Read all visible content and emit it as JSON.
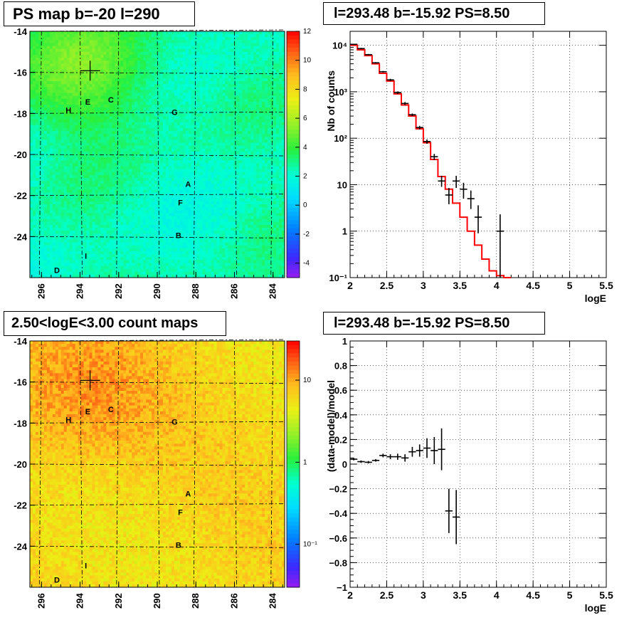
{
  "panels": {
    "map1_title": "PS map b=-20 l=290",
    "spec1_title": "l=293.48 b=-15.92 PS=8.50",
    "map2_title": "2.50<logE<3.00 count maps",
    "spec2_title": "l=293.48 b=-15.92 PS=8.50"
  },
  "chart_data": [
    {
      "type": "heatmap",
      "x_ticks": [
        "296",
        "294",
        "292",
        "290",
        "288",
        "286",
        "284"
      ],
      "x_tick_values": [
        296,
        294,
        292,
        290,
        288,
        286,
        284
      ],
      "y_ticks": [
        "-14",
        "-16",
        "-18",
        "-20",
        "-22",
        "-24"
      ],
      "y_tick_values": [
        -14,
        -16,
        -18,
        -20,
        -22,
        -24
      ],
      "xlim": [
        296.6,
        283.4
      ],
      "ylim": [
        -26.0,
        -14.0
      ],
      "z_ticks": [
        "12",
        "10",
        "8",
        "6",
        "4",
        "2",
        "0",
        "-2",
        "-4"
      ],
      "z_tick_values": [
        12,
        10,
        8,
        6,
        4,
        2,
        0,
        -2,
        -4
      ],
      "zlim": [
        -5,
        12
      ],
      "grid": true,
      "source_labels": [
        {
          "text": "E",
          "l": 293.6,
          "b": -17.4
        },
        {
          "text": "C",
          "l": 292.4,
          "b": -17.3
        },
        {
          "text": "H",
          "l": 294.6,
          "b": -17.8
        },
        {
          "text": "G",
          "l": 289.1,
          "b": -17.9
        },
        {
          "text": "A",
          "l": 288.4,
          "b": -21.4
        },
        {
          "text": "F",
          "l": 288.8,
          "b": -22.3
        },
        {
          "text": "B",
          "l": 288.9,
          "b": -23.9
        },
        {
          "text": "I",
          "l": 293.7,
          "b": -24.9
        },
        {
          "text": "D",
          "l": 295.2,
          "b": -25.6
        }
      ],
      "marker": {
        "l": 293.48,
        "b": -15.92
      }
    },
    {
      "type": "line",
      "xlabel": "logE",
      "ylabel": "Nb of counts",
      "xlim": [
        2,
        5.5
      ],
      "ylim": [
        0.1,
        20000
      ],
      "log_y": true,
      "grid": true,
      "x_ticks": [
        "2",
        "2.5",
        "3",
        "3.5",
        "4",
        "4.5",
        "5",
        "5.5"
      ],
      "y_ticks": [
        "10⁻¹",
        "1",
        "10",
        "10²",
        "10³",
        "10⁴"
      ],
      "y_tick_values": [
        0.1,
        1,
        10,
        100,
        1000,
        10000
      ],
      "model_color": "#ff0000",
      "model_edges": [
        2.0,
        2.1,
        2.2,
        2.3,
        2.4,
        2.5,
        2.6,
        2.7,
        2.8,
        2.9,
        3.0,
        3.1,
        3.2,
        3.3,
        3.4,
        3.5,
        3.6,
        3.7,
        3.8,
        3.9,
        4.0,
        4.1,
        4.2,
        5.5
      ],
      "model_values": [
        10000,
        8000,
        6000,
        4000,
        2500,
        1700,
        900,
        520,
        300,
        160,
        80,
        35,
        15,
        8,
        4,
        2,
        1,
        0.5,
        0.25,
        0.14,
        0.11,
        0.1
      ],
      "data_points": [
        {
          "x": 2.05,
          "y": 10500,
          "lo": 10200,
          "hi": 10800
        },
        {
          "x": 2.15,
          "y": 8500,
          "lo": 8200,
          "hi": 8800
        },
        {
          "x": 2.25,
          "y": 6300,
          "lo": 6100,
          "hi": 6500
        },
        {
          "x": 2.35,
          "y": 4200,
          "lo": 4050,
          "hi": 4350
        },
        {
          "x": 2.45,
          "y": 2700,
          "lo": 2600,
          "hi": 2800
        },
        {
          "x": 2.55,
          "y": 1800,
          "lo": 1700,
          "hi": 1900
        },
        {
          "x": 2.65,
          "y": 960,
          "lo": 900,
          "hi": 1020
        },
        {
          "x": 2.75,
          "y": 560,
          "lo": 520,
          "hi": 600
        },
        {
          "x": 2.85,
          "y": 320,
          "lo": 300,
          "hi": 340
        },
        {
          "x": 2.95,
          "y": 170,
          "lo": 155,
          "hi": 185
        },
        {
          "x": 3.05,
          "y": 85,
          "lo": 76,
          "hi": 94
        },
        {
          "x": 3.15,
          "y": 40,
          "lo": 34,
          "hi": 46
        },
        {
          "x": 3.25,
          "y": 12,
          "lo": 9,
          "hi": 15.5
        },
        {
          "x": 3.35,
          "y": 6,
          "lo": 3.8,
          "hi": 8.5
        },
        {
          "x": 3.45,
          "y": 12,
          "lo": 8.5,
          "hi": 15.5
        },
        {
          "x": 3.55,
          "y": 8,
          "lo": 5,
          "hi": 11
        },
        {
          "x": 3.65,
          "y": 5,
          "lo": 3,
          "hi": 7.5
        },
        {
          "x": 3.75,
          "y": 2,
          "lo": 0.9,
          "hi": 3.6
        },
        {
          "x": 4.05,
          "y": 1,
          "lo": 0.1,
          "hi": 2.3
        }
      ]
    },
    {
      "type": "heatmap",
      "x_ticks": [
        "296",
        "294",
        "292",
        "290",
        "288",
        "286",
        "284"
      ],
      "x_tick_values": [
        296,
        294,
        292,
        290,
        288,
        286,
        284
      ],
      "y_ticks": [
        "-14",
        "-16",
        "-18",
        "-20",
        "-22",
        "-24"
      ],
      "y_tick_values": [
        -14,
        -16,
        -18,
        -20,
        -22,
        -24
      ],
      "xlim": [
        296.6,
        283.4
      ],
      "ylim": [
        -26.0,
        -14.0
      ],
      "z_ticks": [
        "10",
        "1",
        "10⁻¹"
      ],
      "z_tick_values": [
        10,
        1,
        0.1
      ],
      "log_z": true,
      "zlim": [
        0.03,
        30
      ],
      "grid": true,
      "source_labels": [
        {
          "text": "E",
          "l": 293.6,
          "b": -17.4
        },
        {
          "text": "C",
          "l": 292.4,
          "b": -17.3
        },
        {
          "text": "H",
          "l": 294.6,
          "b": -17.8
        },
        {
          "text": "G",
          "l": 289.1,
          "b": -17.9
        },
        {
          "text": "A",
          "l": 288.4,
          "b": -21.4
        },
        {
          "text": "F",
          "l": 288.8,
          "b": -22.3
        },
        {
          "text": "B",
          "l": 288.9,
          "b": -23.9
        },
        {
          "text": "I",
          "l": 293.7,
          "b": -24.9
        },
        {
          "text": "D",
          "l": 295.2,
          "b": -25.6
        }
      ],
      "marker": {
        "l": 293.48,
        "b": -15.92
      }
    },
    {
      "type": "scatter",
      "xlabel": "logE",
      "ylabel": "(data-model)/model",
      "xlim": [
        2,
        5.5
      ],
      "ylim": [
        -1,
        1
      ],
      "grid": true,
      "x_ticks": [
        "2",
        "2.5",
        "3",
        "3.5",
        "4",
        "4.5",
        "5",
        "5.5"
      ],
      "y_ticks": [
        "1",
        "0.8",
        "0.6",
        "0.4",
        "0.2",
        "0",
        "−0.2",
        "−0.4",
        "−0.6",
        "−0.8",
        "−1"
      ],
      "y_tick_values": [
        1,
        0.8,
        0.6,
        0.4,
        0.2,
        0,
        -0.2,
        -0.4,
        -0.6,
        -0.8,
        -1
      ],
      "data_points": [
        {
          "x": 2.05,
          "y": 0.04,
          "err": 0.01
        },
        {
          "x": 2.15,
          "y": 0.02,
          "err": 0.01
        },
        {
          "x": 2.25,
          "y": 0.015,
          "err": 0.01
        },
        {
          "x": 2.35,
          "y": 0.03,
          "err": 0.01
        },
        {
          "x": 2.45,
          "y": 0.07,
          "err": 0.015
        },
        {
          "x": 2.55,
          "y": 0.06,
          "err": 0.02
        },
        {
          "x": 2.65,
          "y": 0.06,
          "err": 0.025
        },
        {
          "x": 2.75,
          "y": 0.05,
          "err": 0.03
        },
        {
          "x": 2.85,
          "y": 0.1,
          "err": 0.04
        },
        {
          "x": 2.95,
          "y": 0.11,
          "err": 0.05
        },
        {
          "x": 3.05,
          "y": 0.13,
          "err": 0.08
        },
        {
          "x": 3.15,
          "y": 0.11,
          "err": 0.11
        },
        {
          "x": 3.25,
          "y": 0.12,
          "err": 0.17
        },
        {
          "x": 3.35,
          "y": -0.38,
          "err": 0.18
        },
        {
          "x": 3.45,
          "y": -0.43,
          "err": 0.22
        }
      ]
    }
  ]
}
